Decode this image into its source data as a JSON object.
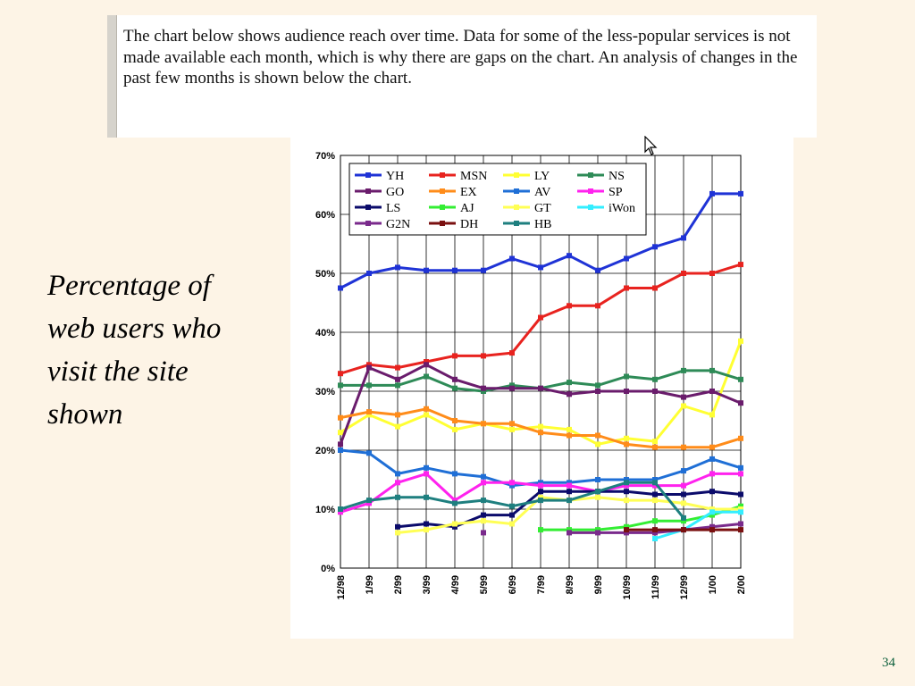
{
  "intro": {
    "text": "The chart below shows audience reach over time. Data for some of the less-popular services is not made available each month, which is why there are gaps on the chart. An analysis of changes in the past few months is shown below the chart."
  },
  "caption": {
    "text": "Percentage of web users who visit the site shown"
  },
  "page_number": "34",
  "chart_data": {
    "type": "line",
    "title": "",
    "xlabel": "",
    "ylabel": "",
    "ylim": [
      0,
      70
    ],
    "y_ticks": [
      "0%",
      "10%",
      "20%",
      "30%",
      "40%",
      "50%",
      "60%",
      "70%"
    ],
    "grid": true,
    "legend_position": "top-left",
    "categories": [
      "12/98",
      "1/99",
      "2/99",
      "3/99",
      "4/99",
      "5/99",
      "6/99",
      "7/99",
      "8/99",
      "9/99",
      "10/99",
      "11/99",
      "12/99",
      "1/00",
      "2/00"
    ],
    "series": [
      {
        "name": "YH",
        "color": "#1f33d6",
        "values": [
          47.5,
          50,
          51,
          50.5,
          50.5,
          50.5,
          52.5,
          51,
          53,
          50.5,
          52.5,
          54.5,
          56,
          63.5,
          63.5
        ]
      },
      {
        "name": "MSN",
        "color": "#e8231f",
        "values": [
          33,
          34.5,
          34,
          35,
          36,
          36,
          36.5,
          42.5,
          44.5,
          44.5,
          47.5,
          47.5,
          50,
          50,
          51.5
        ]
      },
      {
        "name": "LY",
        "color": "#ffff33",
        "values": [
          23,
          26,
          24,
          26,
          23.5,
          24.5,
          23.5,
          24,
          23.5,
          21,
          22,
          21.5,
          27.5,
          26,
          38.5
        ]
      },
      {
        "name": "NS",
        "color": "#2e8b57",
        "values": [
          31,
          31,
          31,
          32.5,
          30.5,
          30,
          31,
          30.5,
          31.5,
          31,
          32.5,
          32,
          33.5,
          33.5,
          32
        ]
      },
      {
        "name": "GO",
        "color": "#6a1c6c",
        "values": [
          21,
          34,
          32,
          34.5,
          32,
          30.5,
          30.5,
          30.5,
          29.5,
          30,
          30,
          30,
          29,
          30,
          28
        ]
      },
      {
        "name": "EX",
        "color": "#ff8c1a",
        "values": [
          25.5,
          26.5,
          26,
          27,
          25,
          24.5,
          24.5,
          23,
          22.5,
          22.5,
          21,
          20.5,
          20.5,
          20.5,
          22
        ]
      },
      {
        "name": "AV",
        "color": "#1f6fd6",
        "values": [
          20,
          19.5,
          16,
          17,
          16,
          15.5,
          14,
          14.5,
          14.5,
          15,
          15,
          15,
          16.5,
          18.5,
          17
        ]
      },
      {
        "name": "SP",
        "color": "#ff22ee",
        "values": [
          9.5,
          11,
          14.5,
          16,
          11.5,
          14.5,
          14.5,
          14,
          14,
          13,
          14,
          14,
          14,
          16,
          16
        ]
      },
      {
        "name": "LS",
        "color": "#0b0b6b",
        "values": [
          null,
          null,
          7,
          7.5,
          7,
          9,
          9,
          13,
          13,
          13,
          13,
          12.5,
          12.5,
          13,
          12.5
        ]
      },
      {
        "name": "AJ",
        "color": "#33ee33",
        "values": [
          null,
          null,
          null,
          null,
          null,
          null,
          null,
          6.5,
          6.5,
          6.5,
          7,
          8,
          8,
          9,
          10.5
        ]
      },
      {
        "name": "GT",
        "color": "#ffff55",
        "values": [
          null,
          null,
          6,
          6.5,
          7.5,
          8,
          7.5,
          12,
          11.5,
          12,
          11.5,
          11.5,
          11,
          10,
          10
        ]
      },
      {
        "name": "iWon",
        "color": "#33eeff",
        "values": [
          null,
          null,
          null,
          null,
          null,
          null,
          null,
          null,
          null,
          null,
          null,
          5,
          6.5,
          9.5,
          9.5
        ]
      },
      {
        "name": "G2N",
        "color": "#7a2a8c",
        "values": [
          null,
          null,
          null,
          null,
          null,
          6,
          null,
          null,
          6,
          6,
          6,
          6,
          6.5,
          7,
          7.5
        ]
      },
      {
        "name": "DH",
        "color": "#7a1010",
        "values": [
          null,
          null,
          null,
          null,
          null,
          null,
          null,
          null,
          null,
          null,
          6.5,
          6.5,
          6.5,
          6.5,
          6.5
        ]
      },
      {
        "name": "HB",
        "color": "#1e7f7f",
        "values": [
          10,
          11.5,
          12,
          12,
          11,
          11.5,
          10.5,
          11.5,
          11.5,
          13,
          14.5,
          14.5,
          8.5,
          null,
          null
        ]
      }
    ]
  }
}
